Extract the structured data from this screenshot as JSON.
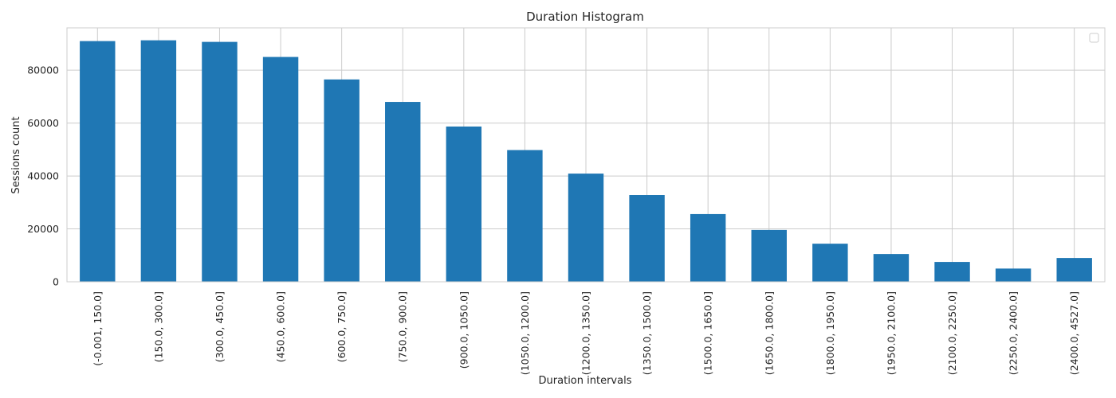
{
  "chart_data": {
    "type": "bar",
    "title": "Duration Histogram",
    "xlabel": "Duration intervals",
    "ylabel": "Sessions count",
    "categories": [
      "(-0.001, 150.0]",
      "(150.0, 300.0]",
      "(300.0, 450.0]",
      "(450.0, 600.0]",
      "(600.0, 750.0]",
      "(750.0, 900.0]",
      "(900.0, 1050.0]",
      "(1050.0, 1200.0]",
      "(1200.0, 1350.0]",
      "(1350.0, 1500.0]",
      "(1500.0, 1650.0]",
      "(1650.0, 1800.0]",
      "(1800.0, 1950.0]",
      "(1950.0, 2100.0]",
      "(2100.0, 2250.0]",
      "(2250.0, 2400.0]",
      "(2400.0, 4527.0]"
    ],
    "values": [
      91000,
      91300,
      90700,
      85000,
      76500,
      68000,
      58700,
      49800,
      40900,
      32800,
      25600,
      19600,
      14400,
      10500,
      7500,
      5000,
      9000
    ],
    "yticks": [
      0,
      20000,
      40000,
      60000,
      80000
    ],
    "ytick_labels": [
      "0",
      "20000",
      "40000",
      "60000",
      "80000"
    ],
    "ylim": [
      0,
      96000
    ],
    "grid": true,
    "legend": "top-right",
    "colors": {
      "bar": "#1f77b4",
      "grid": "#cccccc",
      "background": "#ffffff"
    }
  }
}
